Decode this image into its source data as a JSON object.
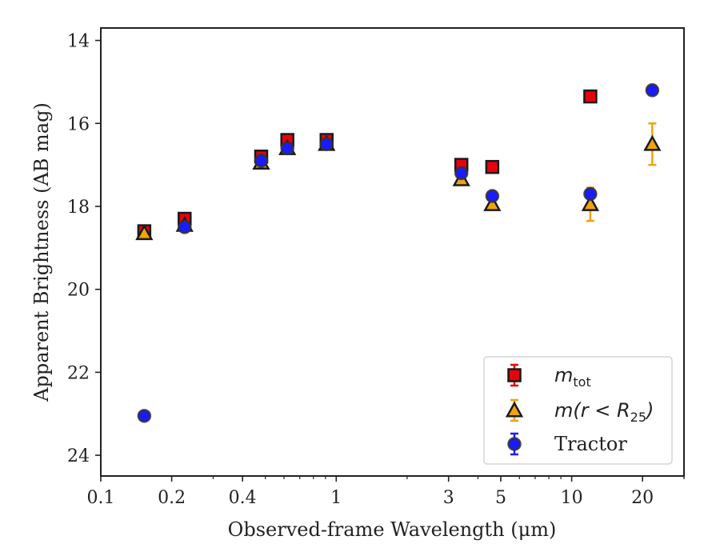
{
  "chart_data": {
    "type": "scatter",
    "title": "",
    "xlabel": "Observed-frame Wavelength (μm)",
    "ylabel": "Apparent Brightness (AB mag)",
    "xscale": "log",
    "xlim": [
      0.1,
      30
    ],
    "ylim": [
      24.5,
      13.7
    ],
    "y_inverted": true,
    "xticks": [
      {
        "value": 0.1,
        "label": "0.1"
      },
      {
        "value": 0.2,
        "label": "0.2"
      },
      {
        "value": 0.4,
        "label": "0.4"
      },
      {
        "value": 1,
        "label": "1"
      },
      {
        "value": 3,
        "label": "3"
      },
      {
        "value": 5,
        "label": "5"
      },
      {
        "value": 10,
        "label": "10"
      },
      {
        "value": 20,
        "label": "20"
      }
    ],
    "yticks": [
      {
        "value": 14,
        "label": "14"
      },
      {
        "value": 16,
        "label": "16"
      },
      {
        "value": 18,
        "label": "18"
      },
      {
        "value": 20,
        "label": "20"
      },
      {
        "value": 22,
        "label": "22"
      },
      {
        "value": 24,
        "label": "24"
      }
    ],
    "grid": false,
    "legend_position": "lower-right",
    "series": [
      {
        "name": "m_tot",
        "legend_main": "m",
        "legend_sub": "tot",
        "marker": "square",
        "face_color": "#e8000b",
        "error_color": "#e8000b",
        "points": [
          {
            "x": 0.153,
            "y": 18.6,
            "err": 0.1
          },
          {
            "x": 0.227,
            "y": 18.3,
            "err": 0.1
          },
          {
            "x": 0.48,
            "y": 16.8,
            "err": 0.05
          },
          {
            "x": 0.62,
            "y": 16.4,
            "err": 0.05
          },
          {
            "x": 0.91,
            "y": 16.4,
            "err": 0.05
          },
          {
            "x": 3.4,
            "y": 17.0,
            "err": 0.05
          },
          {
            "x": 4.6,
            "y": 17.05,
            "err": 0.05
          },
          {
            "x": 12.0,
            "y": 15.35,
            "err": 0.05
          }
        ]
      },
      {
        "name": "m(r < R_25)",
        "legend_main": "m(r < R",
        "legend_sub": "25",
        "legend_tail": ")",
        "marker": "triangle",
        "face_color": "#f0a30a",
        "error_color": "#f0a30a",
        "points": [
          {
            "x": 0.153,
            "y": 18.65,
            "err": 0.05
          },
          {
            "x": 0.227,
            "y": 18.45,
            "err": 0.05
          },
          {
            "x": 0.48,
            "y": 16.95,
            "err": 0.05
          },
          {
            "x": 0.62,
            "y": 16.6,
            "err": 0.05
          },
          {
            "x": 0.91,
            "y": 16.5,
            "err": 0.05
          },
          {
            "x": 3.4,
            "y": 17.35,
            "err": 0.05
          },
          {
            "x": 4.6,
            "y": 17.95,
            "err": 0.05
          },
          {
            "x": 12.0,
            "y": 17.95,
            "err": 0.4
          },
          {
            "x": 22.0,
            "y": 16.5,
            "err": 0.5
          }
        ]
      },
      {
        "name": "Tractor",
        "legend_main": "Tractor",
        "marker": "circle",
        "face_color": "#1a1aff",
        "error_color": "#1a1aff",
        "points": [
          {
            "x": 0.153,
            "y": 23.05,
            "err": 0.05
          },
          {
            "x": 0.227,
            "y": 18.5,
            "err": 0.05
          },
          {
            "x": 0.48,
            "y": 16.9,
            "err": 0.05
          },
          {
            "x": 0.62,
            "y": 16.6,
            "err": 0.05
          },
          {
            "x": 0.91,
            "y": 16.5,
            "err": 0.05
          },
          {
            "x": 3.4,
            "y": 17.2,
            "err": 0.05
          },
          {
            "x": 4.6,
            "y": 17.75,
            "err": 0.05
          },
          {
            "x": 12.0,
            "y": 17.7,
            "err": 0.05
          },
          {
            "x": 22.0,
            "y": 15.2,
            "err": 0.05
          }
        ]
      }
    ]
  }
}
